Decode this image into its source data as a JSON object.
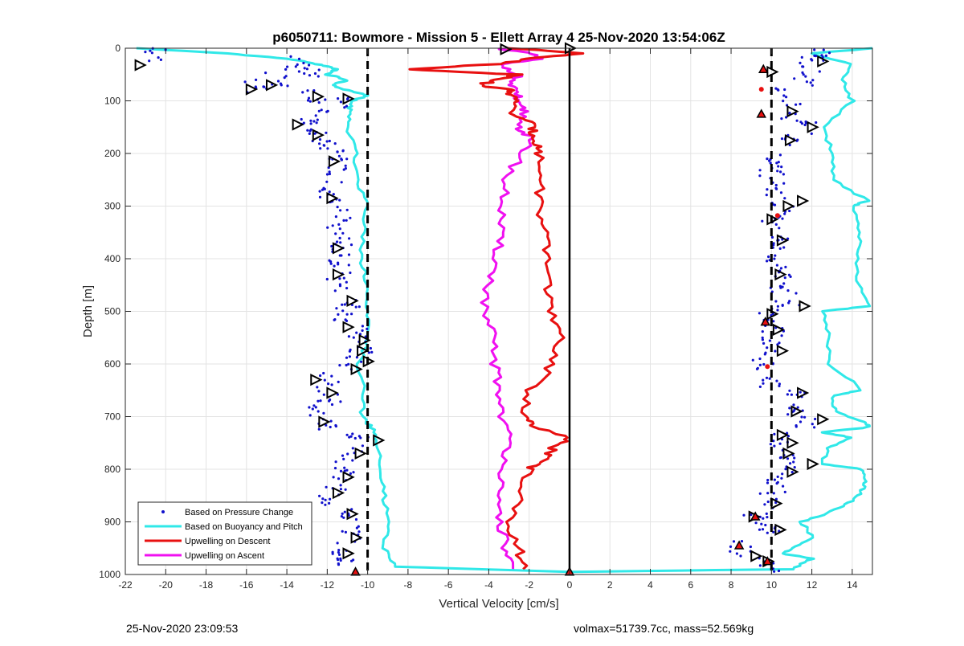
{
  "chart_data": {
    "type": "scatter",
    "title": "p6050711: Bowmore - Mission 5 - Ellett Array 4 25-Nov-2020 13:54:06Z",
    "xlabel": "Vertical Velocity [cm/s]",
    "ylabel": "Depth [m]",
    "xlim": [
      -22,
      15
    ],
    "ylim": [
      0,
      1000
    ],
    "y_reversed": true,
    "grid": true,
    "xticks": [
      -22,
      -20,
      -18,
      -16,
      -14,
      -12,
      -10,
      -8,
      -6,
      -4,
      -2,
      0,
      2,
      4,
      6,
      8,
      10,
      12,
      14
    ],
    "yticks": [
      0,
      100,
      200,
      300,
      400,
      500,
      600,
      700,
      800,
      900,
      1000
    ],
    "legend_position": "bottom-left",
    "reference_lines": [
      {
        "x": -10,
        "style": "dashed",
        "color": "#000000"
      },
      {
        "x": 10,
        "style": "dashed",
        "color": "#000000"
      },
      {
        "x": 0,
        "style": "solid",
        "color": "#000000"
      }
    ],
    "series": [
      {
        "name": "Based on Pressure Change",
        "kind": "points",
        "color": "#1010cc",
        "descent": {
          "depth": [
            10,
            30,
            45,
            60,
            75,
            90,
            110,
            130,
            150,
            170,
            190,
            210,
            240,
            270,
            300,
            330,
            360,
            390,
            420,
            450,
            480,
            510,
            540,
            570,
            600,
            630,
            660,
            690,
            710,
            740,
            770,
            800,
            830,
            860,
            890,
            920,
            950,
            980
          ],
          "velocity": [
            -20.5,
            -13.5,
            -13.0,
            -14.5,
            -15.5,
            -13.0,
            -11.5,
            -12.5,
            -13.0,
            -12.3,
            -11.8,
            -11.5,
            -11.6,
            -11.8,
            -11.5,
            -11.4,
            -11.2,
            -11.5,
            -11.3,
            -11.6,
            -11.0,
            -11.2,
            -10.5,
            -10.3,
            -10.8,
            -12.0,
            -11.9,
            -12.3,
            -12.0,
            -10.5,
            -10.8,
            -11.2,
            -11.5,
            -12.0,
            -11.0,
            -10.8,
            -11.2,
            -10.9
          ]
        },
        "ascent": {
          "depth": [
            980,
            950,
            920,
            890,
            860,
            830,
            800,
            770,
            740,
            710,
            690,
            660,
            630,
            600,
            570,
            540,
            510,
            480,
            450,
            420,
            390,
            360,
            330,
            300,
            270,
            240,
            210,
            180,
            150,
            120,
            90,
            60,
            30,
            10
          ],
          "velocity": [
            9.8,
            8.5,
            9.9,
            9.2,
            10.0,
            10.3,
            10.8,
            10.6,
            10.4,
            11.8,
            11.0,
            11.3,
            10.0,
            9.6,
            10.2,
            10.1,
            9.9,
            10.8,
            10.3,
            10.5,
            10.2,
            10.4,
            10.1,
            10.6,
            10.2,
            10.0,
            10.1,
            10.8,
            11.8,
            11.0,
            10.5,
            11.5,
            12.0,
            12.5
          ]
        }
      },
      {
        "name": "Based on Buoyancy and Pitch",
        "kind": "line",
        "color": "#30e8e8",
        "descent": {
          "depth": [
            0,
            10,
            20,
            30,
            40,
            50,
            60,
            70,
            80,
            90,
            100,
            120,
            150,
            200,
            250,
            300,
            350,
            400,
            450,
            500,
            550,
            600,
            650,
            700,
            720,
            750,
            800,
            850,
            900,
            950,
            985,
            995
          ],
          "velocity": [
            -21.5,
            -17.0,
            -14.0,
            -12.5,
            -11.5,
            -12.0,
            -11.0,
            -11.8,
            -11.0,
            -10.0,
            -10.8,
            -10.9,
            -11.0,
            -10.6,
            -10.5,
            -10.0,
            -10.2,
            -10.3,
            -10.0,
            -10.1,
            -9.9,
            -10.5,
            -10.2,
            -10.3,
            -9.8,
            -9.5,
            -9.4,
            -9.2,
            -9.0,
            -9.2,
            -8.6,
            0.0
          ]
        },
        "ascent": {
          "depth": [
            995,
            990,
            970,
            960,
            950,
            930,
            900,
            880,
            860,
            840,
            820,
            800,
            790,
            760,
            740,
            730,
            720,
            710,
            690,
            660,
            650,
            600,
            550,
            500,
            490,
            450,
            400,
            350,
            300,
            290,
            250,
            200,
            150,
            100,
            60,
            30,
            10,
            0
          ],
          "velocity": [
            0.0,
            11.0,
            12.0,
            10.5,
            11.0,
            12.0,
            11.5,
            13.0,
            14.0,
            14.5,
            14.6,
            14.5,
            12.5,
            12.8,
            14.0,
            12.5,
            14.8,
            14.6,
            13.2,
            13.0,
            14.5,
            12.9,
            12.8,
            12.6,
            14.8,
            14.3,
            14.2,
            14.4,
            14.0,
            14.8,
            13.0,
            13.0,
            12.6,
            14.0,
            13.5,
            14.0,
            12.0,
            15.0
          ]
        }
      },
      {
        "name": "Upwelling on Descent",
        "kind": "line",
        "color": "#e81010",
        "depth": [
          0,
          10,
          20,
          30,
          40,
          50,
          60,
          70,
          80,
          90,
          100,
          120,
          140,
          160,
          180,
          200,
          250,
          300,
          350,
          400,
          450,
          500,
          550,
          600,
          650,
          700,
          720,
          740,
          760,
          780,
          800,
          850,
          900,
          950,
          990
        ],
        "velocity": [
          -3.0,
          0.8,
          -2.0,
          -3.5,
          -8.0,
          -2.5,
          -3.5,
          -4.5,
          -2.8,
          -3.0,
          -2.5,
          -3.0,
          -2.0,
          -1.8,
          -1.6,
          -1.5,
          -1.4,
          -1.5,
          -1.3,
          -1.1,
          -1.0,
          -1.0,
          -0.5,
          -0.8,
          -2.0,
          -2.2,
          -1.8,
          -0.1,
          -0.8,
          -1.2,
          -2.0,
          -2.5,
          -3.0,
          -2.5,
          -2.3
        ]
      },
      {
        "name": "Upwelling on Ascent",
        "kind": "line",
        "color": "#f010f0",
        "depth": [
          0,
          10,
          20,
          30,
          50,
          70,
          90,
          100,
          120,
          150,
          170,
          200,
          250,
          300,
          350,
          400,
          450,
          500,
          550,
          600,
          650,
          700,
          750,
          800,
          850,
          900,
          950,
          990
        ],
        "velocity": [
          -3.5,
          -2.0,
          -1.5,
          -3.5,
          -2.5,
          -3.0,
          -2.5,
          -2.8,
          -2.2,
          -2.5,
          -2.0,
          -2.3,
          -3.2,
          -3.3,
          -3.5,
          -3.6,
          -4.0,
          -4.3,
          -3.8,
          -3.7,
          -3.5,
          -3.3,
          -3.0,
          -3.2,
          -3.7,
          -3.4,
          -3.2,
          -2.8
        ]
      }
    ],
    "markers": {
      "open_triangles": [
        {
          "x": -3.2,
          "y": 2
        },
        {
          "x": 0.0,
          "y": 0
        },
        {
          "x": -21.3,
          "y": 32
        },
        {
          "x": -14.8,
          "y": 70
        },
        {
          "x": -15.8,
          "y": 78
        },
        {
          "x": -12.5,
          "y": 92
        },
        {
          "x": -11.0,
          "y": 96
        },
        {
          "x": -13.5,
          "y": 145
        },
        {
          "x": -12.5,
          "y": 165
        },
        {
          "x": -11.7,
          "y": 215
        },
        {
          "x": -11.8,
          "y": 285
        },
        {
          "x": -11.5,
          "y": 380
        },
        {
          "x": -11.5,
          "y": 430
        },
        {
          "x": -10.8,
          "y": 480
        },
        {
          "x": -11.0,
          "y": 530
        },
        {
          "x": -10.2,
          "y": 555
        },
        {
          "x": -10.3,
          "y": 575
        },
        {
          "x": -10.0,
          "y": 595
        },
        {
          "x": -10.6,
          "y": 610
        },
        {
          "x": -12.6,
          "y": 630
        },
        {
          "x": -11.8,
          "y": 655
        },
        {
          "x": -12.2,
          "y": 710
        },
        {
          "x": -9.5,
          "y": 745
        },
        {
          "x": -10.4,
          "y": 770
        },
        {
          "x": -11.0,
          "y": 815
        },
        {
          "x": -11.5,
          "y": 845
        },
        {
          "x": -10.8,
          "y": 885
        },
        {
          "x": -10.6,
          "y": 930
        },
        {
          "x": -11.0,
          "y": 960
        },
        {
          "x": 12.5,
          "y": 25
        },
        {
          "x": 10.0,
          "y": 45
        },
        {
          "x": 11.0,
          "y": 120
        },
        {
          "x": 12.0,
          "y": 150
        },
        {
          "x": 10.9,
          "y": 175
        },
        {
          "x": 11.5,
          "y": 290
        },
        {
          "x": 10.8,
          "y": 300
        },
        {
          "x": 10.0,
          "y": 325
        },
        {
          "x": 10.5,
          "y": 365
        },
        {
          "x": 10.4,
          "y": 430
        },
        {
          "x": 11.6,
          "y": 490
        },
        {
          "x": 10.0,
          "y": 505
        },
        {
          "x": 10.3,
          "y": 535
        },
        {
          "x": 10.5,
          "y": 575
        },
        {
          "x": 11.5,
          "y": 655
        },
        {
          "x": 11.2,
          "y": 690
        },
        {
          "x": 12.5,
          "y": 705
        },
        {
          "x": 10.5,
          "y": 735
        },
        {
          "x": 11.0,
          "y": 750
        },
        {
          "x": 10.8,
          "y": 770
        },
        {
          "x": 11.0,
          "y": 805
        },
        {
          "x": 12.0,
          "y": 790
        },
        {
          "x": 10.2,
          "y": 865
        },
        {
          "x": 9.1,
          "y": 890
        },
        {
          "x": 10.4,
          "y": 915
        },
        {
          "x": 9.8,
          "y": 975
        },
        {
          "x": 9.2,
          "y": 965
        }
      ],
      "filled_red_triangles": [
        {
          "x": 0.0,
          "y": 995
        },
        {
          "x": -10.6,
          "y": 995
        },
        {
          "x": 9.6,
          "y": 40
        },
        {
          "x": 9.5,
          "y": 125
        },
        {
          "x": 9.7,
          "y": 520
        },
        {
          "x": 8.4,
          "y": 945
        },
        {
          "x": 9.8,
          "y": 975
        },
        {
          "x": 9.2,
          "y": 890
        }
      ],
      "red_dots": [
        {
          "x": 9.5,
          "y": 78
        },
        {
          "x": 9.8,
          "y": 605
        },
        {
          "x": 10.3,
          "y": 318
        }
      ]
    }
  },
  "footer": {
    "timestamp": "25-Nov-2020 23:09:53",
    "info": "volmax=51739.7cc, mass=52.569kg"
  }
}
